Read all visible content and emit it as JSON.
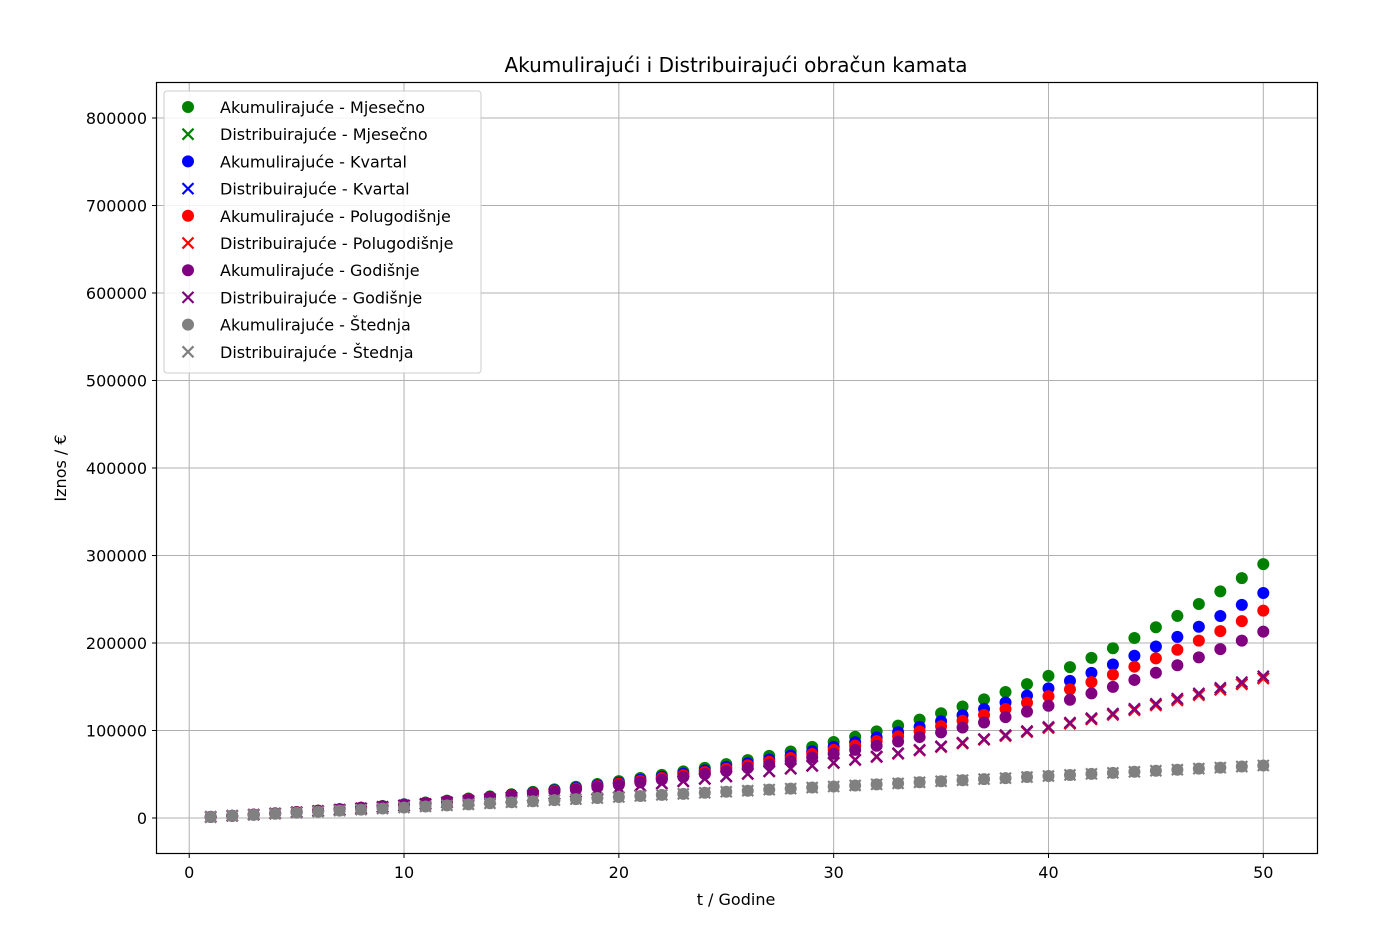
{
  "chart_data": {
    "type": "scatter",
    "title": "Akumulirajući i Distribuirajući obračun kamata",
    "xlabel": "t / Godine",
    "ylabel": "Iznos / €",
    "xlim": [
      -1.5,
      52.5
    ],
    "ylim": [
      -40000,
      840000
    ],
    "xticks": [
      0,
      10,
      20,
      30,
      40,
      50
    ],
    "yticks": [
      0,
      100000,
      200000,
      300000,
      400000,
      500000,
      600000,
      700000,
      800000
    ],
    "grid": true,
    "legend_position": "top-left",
    "x": [
      1,
      2,
      3,
      4,
      5,
      6,
      7,
      8,
      9,
      10,
      11,
      12,
      13,
      14,
      15,
      16,
      17,
      18,
      19,
      20,
      21,
      22,
      23,
      24,
      25,
      26,
      27,
      28,
      29,
      30,
      31,
      32,
      33,
      34,
      35,
      36,
      37,
      38,
      39,
      40,
      41,
      42,
      43,
      44,
      45,
      46,
      47,
      48,
      49,
      50
    ],
    "series": [
      {
        "name": "Akumulirajuće - Mjesečno",
        "marker": "circle",
        "color": "#008000",
        "values": [
          1225,
          2516,
          3877,
          5310,
          6820,
          8412,
          10089,
          11856,
          13718,
          15681,
          17749,
          19928,
          22225,
          24645,
          27196,
          29884,
          32716,
          35701,
          38847,
          42162,
          45656,
          49338,
          53217,
          57306,
          61615,
          66155,
          70940,
          75982,
          81296,
          86896,
          92797,
          99016,
          105570,
          112477,
          119755,
          127426,
          135509,
          144027,
          153004,
          162465,
          172434,
          182940,
          194011,
          205678,
          217973,
          230930,
          244584,
          258973,
          274137,
          290117
        ]
      },
      {
        "name": "Distribuirajuće - Mjesečno",
        "marker": "x",
        "color": "#008000",
        "values": [
          1220,
          2483,
          3790,
          5143,
          6542,
          7991,
          9490,
          11042,
          12648,
          14310,
          16031,
          17812,
          19655,
          21562,
          23536,
          25579,
          27694,
          29883,
          32148,
          34493,
          36920,
          39432,
          42032,
          44723,
          47508,
          50390,
          53374,
          56462,
          59658,
          62966,
          66389,
          69933,
          73601,
          77397,
          81326,
          85392,
          89601,
          93957,
          98465,
          103132,
          107962,
          112961,
          118135,
          123490,
          129032,
          134768,
          140705,
          146850,
          153209,
          159791
        ]
      },
      {
        "name": "Akumulirajuće - Kvartal",
        "marker": "circle",
        "color": "#0000ff",
        "values": [
          1221,
          2502,
          3848,
          5261,
          6746,
          8305,
          9942,
          11661,
          13466,
          15362,
          17353,
          19444,
          21640,
          23946,
          26368,
          28911,
          31582,
          34387,
          37333,
          40427,
          43676,
          47088,
          50671,
          54434,
          58386,
          62536,
          66895,
          71473,
          76280,
          81329,
          86631,
          92200,
          98049,
          104191,
          110642,
          117417,
          124532,
          132005,
          139853,
          148095,
          156751,
          165842,
          175390,
          185418,
          195949,
          207009,
          218624,
          230822,
          243633,
          257087
        ]
      },
      {
        "name": "Distribuirajuće - Kvartal",
        "marker": "x",
        "color": "#0000ff",
        "values": [
          1219,
          2480,
          3785,
          5136,
          6534,
          7981,
          9479,
          11029,
          12634,
          14295,
          16015,
          17795,
          19637,
          21543,
          23516,
          25559,
          27673,
          29861,
          32125,
          34469,
          36895,
          39406,
          42005,
          44694,
          47477,
          50358,
          53339,
          56425,
          59619,
          62924,
          66345,
          69886,
          73551,
          77344,
          81270,
          85333,
          89538,
          93890,
          98395,
          103057,
          107883,
          112877,
          118046,
          123397,
          128934,
          134666,
          140598,
          146738,
          153093,
          159670
        ]
      },
      {
        "name": "Akumulirajuće - Polugodišnje",
        "marker": "circle",
        "color": "#ff0000",
        "values": [
          1218,
          2494,
          3831,
          5232,
          6700,
          8238,
          9849,
          11537,
          13305,
          15158,
          17098,
          19132,
          21262,
          23495,
          25833,
          28284,
          30851,
          33541,
          36359,
          39311,
          42405,
          45646,
          49041,
          52598,
          56325,
          60230,
          64321,
          68607,
          73098,
          77804,
          82734,
          87900,
          93312,
          98983,
          104924,
          111149,
          117671,
          124504,
          131664,
          139165,
          147024,
          155259,
          163886,
          172925,
          182396,
          192319,
          202715,
          213608,
          225021,
          236978
        ]
      },
      {
        "name": "Distribuirajuće - Polugodišnje",
        "marker": "x",
        "color": "#ff0000",
        "values": [
          1218,
          2478,
          3783,
          5133,
          6530,
          7976,
          9473,
          11022,
          12625,
          14285,
          16002,
          17780,
          19620,
          21524,
          23495,
          25535,
          27647,
          29832,
          32094,
          34435,
          36858,
          39365,
          41960,
          44646,
          47426,
          50303,
          53281,
          56363,
          59553,
          62854,
          66271,
          69808,
          73468,
          77256,
          81176,
          85234,
          89433,
          93779,
          98278,
          102934,
          107753,
          112740,
          117902,
          123245,
          128775,
          134499,
          140423,
          146554,
          152900,
          159468
        ]
      },
      {
        "name": "Akumulirajuće - Godišnje",
        "marker": "circle",
        "color": "#800080",
        "values": [
          1214,
          2482,
          3806,
          5189,
          6634,
          8142,
          9718,
          11364,
          13083,
          14878,
          16753,
          18711,
          20756,
          22893,
          25124,
          27455,
          29889,
          32432,
          35088,
          37862,
          40759,
          43785,
          46945,
          50246,
          53694,
          57294,
          61055,
          64983,
          69085,
          73370,
          77845,
          82519,
          87401,
          92500,
          97826,
          103389,
          109199,
          115267,
          121605,
          128225,
          135139,
          142361,
          149903,
          157781,
          166010,
          174604,
          183580,
          192955,
          202747,
          212974
        ]
      },
      {
        "name": "Distribuirajuće - Godišnje",
        "marker": "x",
        "color": "#800080",
        "values": [
          1214,
          2471,
          3773,
          5122,
          6518,
          7964,
          9461,
          11011,
          12617,
          14280,
          16002,
          17785,
          19632,
          21544,
          23525,
          25577,
          27701,
          29901,
          32180,
          34540,
          36984,
          39515,
          42136,
          44850,
          47661,
          50572,
          53587,
          56709,
          59943,
          63292,
          66760,
          70352,
          74072,
          77924,
          81914,
          86046,
          90325,
          94757,
          99346,
          104099,
          109021,
          114119,
          119398,
          124866,
          130528,
          136392,
          142465,
          148755,
          155268,
          162014
        ]
      },
      {
        "name": "Akumulirajuće - Štednja",
        "marker": "circle",
        "color": "#808080",
        "values": [
          1200,
          2400,
          3600,
          4800,
          6000,
          7200,
          8400,
          9600,
          10800,
          12000,
          13200,
          14400,
          15600,
          16800,
          18000,
          19200,
          20400,
          21600,
          22800,
          24000,
          25200,
          26400,
          27600,
          28800,
          30000,
          31200,
          32400,
          33600,
          34800,
          36000,
          37200,
          38400,
          39600,
          40800,
          42000,
          43200,
          44400,
          45600,
          46800,
          48000,
          49200,
          50400,
          51600,
          52800,
          54000,
          55200,
          56400,
          57600,
          58800,
          60000
        ]
      },
      {
        "name": "Distribuirajuće - Štednja",
        "marker": "x",
        "color": "#808080",
        "values": [
          1200,
          2400,
          3600,
          4800,
          6000,
          7200,
          8400,
          9600,
          10800,
          12000,
          13200,
          14400,
          15600,
          16800,
          18000,
          19200,
          20400,
          21600,
          22800,
          24000,
          25200,
          26400,
          27600,
          28800,
          30000,
          31200,
          32400,
          33600,
          34800,
          36000,
          37200,
          38400,
          39600,
          40800,
          42000,
          43200,
          44400,
          45600,
          46800,
          48000,
          49200,
          50400,
          51600,
          52800,
          54000,
          55200,
          56400,
          57600,
          58800,
          60000
        ]
      }
    ]
  }
}
